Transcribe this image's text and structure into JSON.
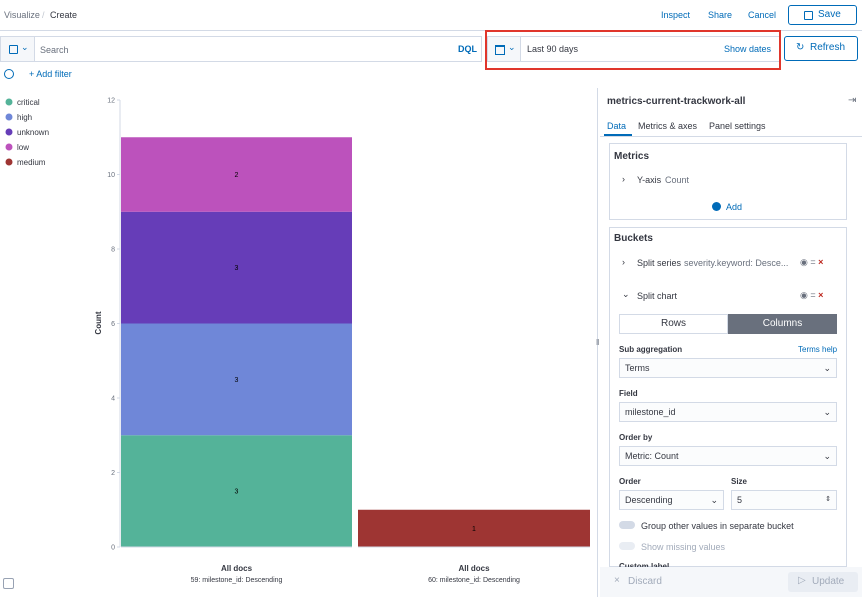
{
  "header": {
    "breadcrumbs": [
      "Visualize",
      "Create"
    ],
    "actions": [
      "Inspect",
      "Share",
      "Cancel"
    ],
    "save": "Save"
  },
  "query_bar": {
    "search_placeholder": "Search",
    "language": "DQL",
    "date_range": "Last 90 days",
    "show_dates": "Show dates",
    "refresh": "Refresh",
    "add_filter": "+ Add filter"
  },
  "chart_data": {
    "type": "bar",
    "stacked": true,
    "y_label": "Count",
    "categories": [
      "All docs",
      "All docs"
    ],
    "panel_labels": [
      "59: milestone_id: Descending",
      "60: milestone_id: Descending"
    ],
    "series": [
      {
        "name": "critical",
        "color": "#54b399",
        "values": [
          3,
          null
        ]
      },
      {
        "name": "high",
        "color": "#6f87d8",
        "values": [
          3,
          null
        ]
      },
      {
        "name": "unknown",
        "color": "#663db8",
        "values": [
          3,
          null
        ]
      },
      {
        "name": "low",
        "color": "#bc52bc",
        "values": [
          2,
          null
        ]
      },
      {
        "name": "medium",
        "color": "#9e3533",
        "values": [
          null,
          1
        ]
      }
    ],
    "ylim": [
      0,
      12
    ],
    "yticks": [
      0,
      2,
      4,
      6,
      8,
      10,
      12
    ],
    "legend": "top-left"
  },
  "sidebar": {
    "title": "metrics-current-trackwork-all",
    "tabs": [
      "Data",
      "Metrics & axes",
      "Panel settings"
    ],
    "metrics": {
      "heading": "Metrics",
      "item_label": "Y-axis",
      "item_value": "Count",
      "add": "Add"
    },
    "buckets": {
      "heading": "Buckets",
      "split_series_label": "Split series",
      "split_series_value": "severity.keyword: Desce...",
      "split_chart": "Split chart",
      "toggle": [
        "Rows",
        "Columns"
      ],
      "sub_aggregation_label": "Sub aggregation",
      "terms_help": "Terms help",
      "sub_aggregation_value": "Terms",
      "field_label": "Field",
      "field_value": "milestone_id",
      "order_by_label": "Order by",
      "order_by_value": "Metric: Count",
      "order_label": "Order",
      "order_value": "Descending",
      "size_label": "Size",
      "size_value": 5,
      "group_other": "Group other values in separate bucket",
      "show_missing": "Show missing values",
      "custom_label": "Custom label"
    },
    "footer": {
      "discard": "Discard",
      "update": "Update"
    }
  }
}
